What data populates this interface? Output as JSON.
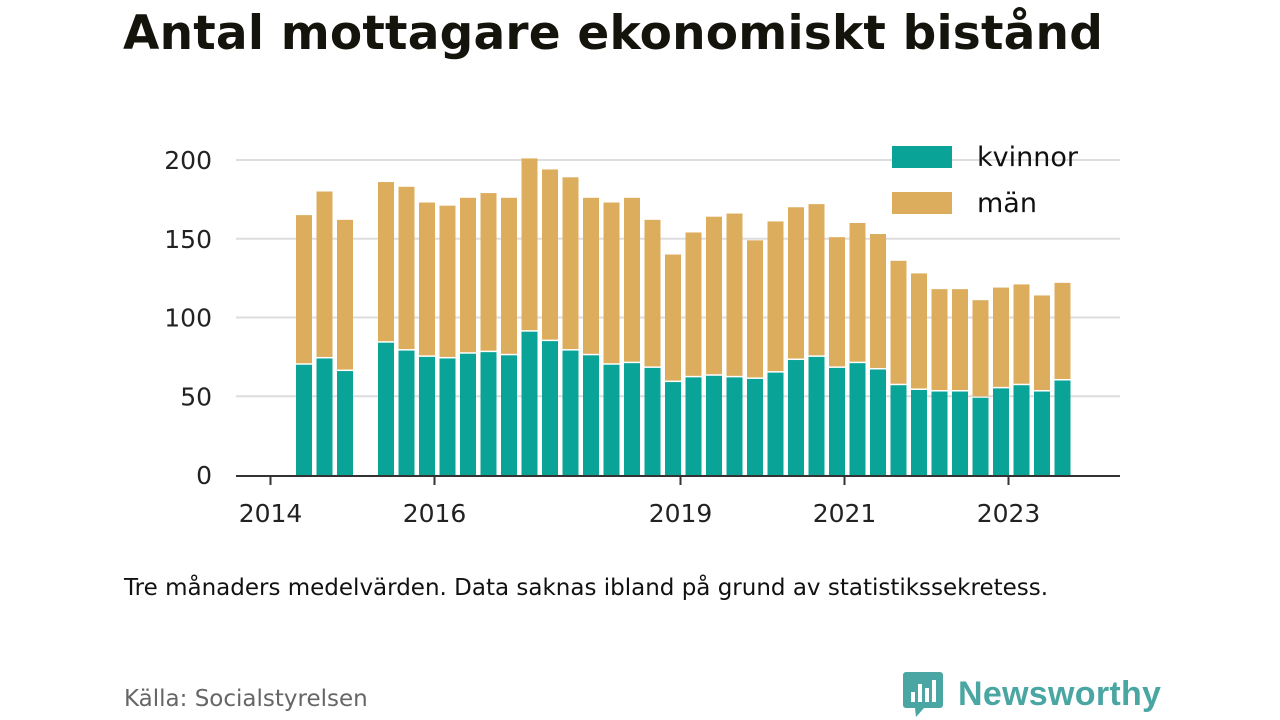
{
  "title": "Antal mottagare ekonomiskt bistånd",
  "note": "Tre månaders medelvärden. Data saknas ibland på grund av statistikssekretess.",
  "source": "Källa: Socialstyrelsen",
  "brand": {
    "name": "Newsworthy",
    "color": "#4aa6a2",
    "logo": "newsworthy-logo-icon"
  },
  "chart_data": {
    "type": "bar",
    "stacked": true,
    "title": "Antal mottagare ekonomiskt bistånd",
    "ylim": [
      0,
      200
    ],
    "yticks": [
      "0",
      "50",
      "100",
      "150",
      "200"
    ],
    "xtick_labels": [
      "2014",
      "2016",
      "2019",
      "2021",
      "2023"
    ],
    "grid": true,
    "legend_position": "top-right",
    "colors": {
      "kvinnor": "#0aa398",
      "män": "#dcad5d"
    },
    "series": [
      {
        "name": "kvinnor",
        "values": [
          null,
          null,
          70,
          74,
          66,
          null,
          84,
          79,
          75,
          74,
          77,
          78,
          76,
          91,
          85,
          79,
          76,
          70,
          71,
          68,
          59,
          62,
          63,
          62,
          61,
          65,
          73,
          75,
          68,
          71,
          67,
          57,
          54,
          53,
          53,
          49,
          55,
          57,
          53,
          60
        ]
      },
      {
        "name": "män",
        "values": [
          null,
          null,
          95,
          106,
          96,
          null,
          102,
          104,
          98,
          97,
          99,
          101,
          100,
          110,
          109,
          110,
          100,
          103,
          105,
          94,
          81,
          92,
          101,
          104,
          88,
          96,
          97,
          97,
          83,
          89,
          86,
          79,
          74,
          65,
          65,
          62,
          64,
          64,
          61,
          62
        ]
      }
    ]
  }
}
